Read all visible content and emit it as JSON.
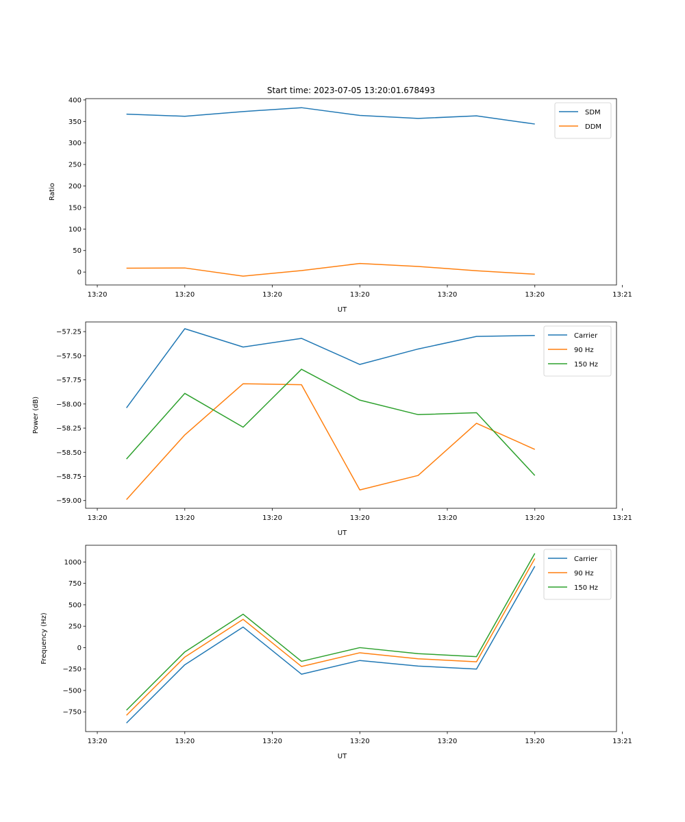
{
  "chart_data": [
    {
      "type": "line",
      "title": "Start time: 2023-07-05 13:20:01.678493",
      "xlabel": "UT",
      "ylabel": "Ratio",
      "x": [
        0,
        1,
        2,
        3,
        4,
        5,
        6,
        7
      ],
      "xlim": [
        -0.7,
        8.4
      ],
      "x_ticks": [
        -0.5,
        1,
        2.5,
        4,
        5.5,
        7,
        8.5
      ],
      "x_tick_labels": [
        "13:20",
        "13:20",
        "13:20",
        "13:20",
        "13:20",
        "13:20",
        "13:21"
      ],
      "ylim": [
        -30,
        403
      ],
      "y_ticks": [
        0,
        50,
        100,
        150,
        200,
        250,
        300,
        350,
        400
      ],
      "y_tick_labels": [
        "0",
        "50",
        "100",
        "150",
        "200",
        "250",
        "300",
        "350",
        "400"
      ],
      "legend_position": "top-right",
      "series": [
        {
          "name": "SDM",
          "color": "#1f77b4",
          "values": [
            367,
            362,
            373,
            382,
            364,
            357,
            363,
            344
          ]
        },
        {
          "name": "DDM",
          "color": "#ff7f0e",
          "values": [
            9,
            9.5,
            -9.5,
            3.5,
            20,
            13,
            3,
            -5
          ]
        }
      ]
    },
    {
      "type": "line",
      "title": "",
      "xlabel": "UT",
      "ylabel": "Power (dB)",
      "x": [
        0,
        1,
        2,
        3,
        4,
        5,
        6,
        7
      ],
      "xlim": [
        -0.7,
        8.4
      ],
      "x_ticks": [
        -0.5,
        1,
        2.5,
        4,
        5.5,
        7,
        8.5
      ],
      "x_tick_labels": [
        "13:20",
        "13:20",
        "13:20",
        "13:20",
        "13:20",
        "13:20",
        "13:21"
      ],
      "ylim": [
        -59.08,
        -57.15
      ],
      "y_ticks": [
        -59.0,
        -58.75,
        -58.5,
        -58.25,
        -58.0,
        -57.75,
        -57.5,
        -57.25
      ],
      "y_tick_labels": [
        "−59.00",
        "−58.75",
        "−58.50",
        "−58.25",
        "−58.00",
        "−57.75",
        "−57.50",
        "−57.25"
      ],
      "legend_position": "top-right",
      "series": [
        {
          "name": "Carrier",
          "color": "#1f77b4",
          "values": [
            -58.04,
            -57.22,
            -57.41,
            -57.32,
            -57.59,
            -57.43,
            -57.3,
            -57.29
          ]
        },
        {
          "name": "90 Hz",
          "color": "#ff7f0e",
          "values": [
            -58.99,
            -58.32,
            -57.79,
            -57.8,
            -58.89,
            -58.74,
            -58.2,
            -58.47
          ]
        },
        {
          "name": "150 Hz",
          "color": "#2ca02c",
          "values": [
            -58.57,
            -57.89,
            -58.24,
            -57.64,
            -57.96,
            -58.11,
            -58.09,
            -58.74
          ]
        }
      ]
    },
    {
      "type": "line",
      "title": "",
      "xlabel": "UT",
      "ylabel": "Frequency (Hz)",
      "x": [
        0,
        1,
        2,
        3,
        4,
        5,
        6,
        7
      ],
      "xlim": [
        -0.7,
        8.4
      ],
      "x_ticks": [
        -0.5,
        1,
        2.5,
        4,
        5.5,
        7,
        8.5
      ],
      "x_tick_labels": [
        "13:20",
        "13:20",
        "13:20",
        "13:20",
        "13:20",
        "13:20",
        "13:21"
      ],
      "ylim": [
        -980,
        1195
      ],
      "y_ticks": [
        -750,
        -500,
        -250,
        0,
        250,
        500,
        750,
        1000
      ],
      "y_tick_labels": [
        "−750",
        "−500",
        "−250",
        "0",
        "250",
        "500",
        "750",
        "1000"
      ],
      "legend_position": "top-right",
      "series": [
        {
          "name": "Carrier",
          "color": "#1f77b4",
          "values": [
            -880,
            -200,
            240,
            -310,
            -150,
            -215,
            -250,
            950
          ]
        },
        {
          "name": "90 Hz",
          "color": "#ff7f0e",
          "values": [
            -790,
            -110,
            330,
            -220,
            -60,
            -130,
            -165,
            1040
          ]
        },
        {
          "name": "150 Hz",
          "color": "#2ca02c",
          "values": [
            -730,
            -50,
            390,
            -160,
            0,
            -70,
            -105,
            1100
          ]
        }
      ]
    }
  ]
}
